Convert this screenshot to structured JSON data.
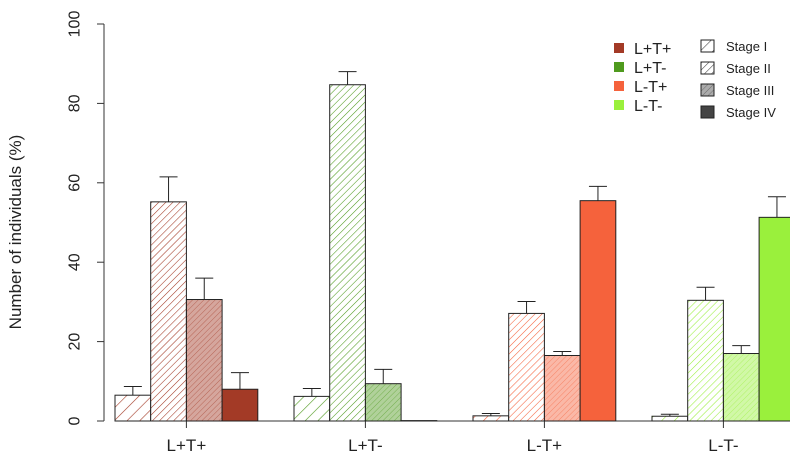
{
  "chart_data": {
    "type": "bar",
    "title": "",
    "xlabel": "",
    "ylabel": "Number of individuals (%)",
    "ylim": [
      0,
      100
    ],
    "yticks": [
      0,
      20,
      40,
      60,
      80,
      100
    ],
    "grid": false,
    "categories": [
      "L+T+",
      "L+T-",
      "L-T+",
      "L-T-"
    ],
    "group_colors": [
      "#a33a26",
      "#4f9a1e",
      "#f5623c",
      "#9af03c"
    ],
    "stages": [
      {
        "name": "Stage I",
        "pattern": "sparse-hatch"
      },
      {
        "name": "Stage II",
        "pattern": "dense-hatch"
      },
      {
        "name": "Stage III",
        "pattern": "light-solid"
      },
      {
        "name": "Stage IV",
        "pattern": "solid"
      }
    ],
    "series": [
      {
        "name": "Stage I",
        "values": [
          6.5,
          6.2,
          1.3,
          1.2
        ],
        "errors": [
          2.2,
          2.0,
          0.6,
          0.5
        ]
      },
      {
        "name": "Stage II",
        "values": [
          55.2,
          84.7,
          27.1,
          30.4
        ],
        "errors": [
          6.3,
          3.3,
          3.0,
          3.3
        ]
      },
      {
        "name": "Stage III",
        "values": [
          30.6,
          9.4,
          16.5,
          17.0
        ],
        "errors": [
          5.4,
          3.6,
          1.0,
          2.0
        ]
      },
      {
        "name": "Stage IV",
        "values": [
          8.0,
          0.1,
          55.5,
          51.3
        ],
        "errors": [
          4.2,
          0,
          3.6,
          5.2
        ]
      }
    ],
    "legend": {
      "position": "top-right",
      "groups": [
        "L+T+",
        "L+T-",
        "L-T+",
        "L-T-"
      ],
      "stages": [
        "Stage I",
        "Stage II",
        "Stage III",
        "Stage IV"
      ]
    }
  }
}
